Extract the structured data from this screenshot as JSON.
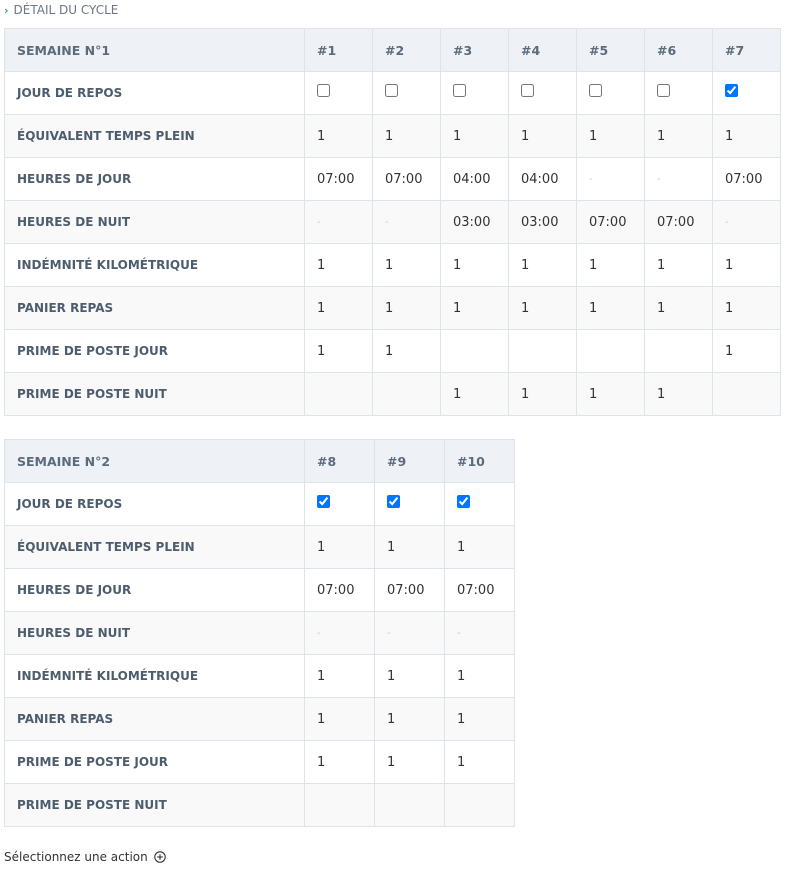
{
  "header": {
    "title": "DÉTAIL DU CYCLE"
  },
  "tables": [
    {
      "title": "SEMAINE N°1",
      "columns": [
        "#1",
        "#2",
        "#3",
        "#4",
        "#5",
        "#6",
        "#7"
      ],
      "rows": [
        {
          "label": "JOUR DE REPOS",
          "checked": [
            false,
            false,
            false,
            false,
            false,
            false,
            true
          ]
        },
        {
          "label": "ÉQUIVALENT TEMPS PLEIN",
          "cells": [
            "1",
            "1",
            "1",
            "1",
            "1",
            "1",
            "1"
          ]
        },
        {
          "label": "HEURES DE JOUR",
          "cells": [
            "07:00",
            "07:00",
            "04:00",
            "04:00",
            "-",
            "-",
            "07:00"
          ]
        },
        {
          "label": "HEURES DE NUIT",
          "cells": [
            "-",
            "-",
            "03:00",
            "03:00",
            "07:00",
            "07:00",
            "-"
          ]
        },
        {
          "label": "INDÉMNITÉ KILOMÉTRIQUE",
          "cells": [
            "1",
            "1",
            "1",
            "1",
            "1",
            "1",
            "1"
          ]
        },
        {
          "label": "PANIER REPAS",
          "cells": [
            "1",
            "1",
            "1",
            "1",
            "1",
            "1",
            "1"
          ]
        },
        {
          "label": "PRIME DE POSTE JOUR",
          "cells": [
            "1",
            "1",
            null,
            null,
            null,
            null,
            "1"
          ]
        },
        {
          "label": "PRIME DE POSTE NUIT",
          "cells": [
            null,
            null,
            "1",
            "1",
            "1",
            "1",
            null
          ]
        }
      ]
    },
    {
      "title": "SEMAINE N°2",
      "columns": [
        "#8",
        "#9",
        "#10"
      ],
      "rows": [
        {
          "label": "JOUR DE REPOS",
          "checked": [
            true,
            true,
            true
          ]
        },
        {
          "label": "ÉQUIVALENT TEMPS PLEIN",
          "cells": [
            "1",
            "1",
            "1"
          ]
        },
        {
          "label": "HEURES DE JOUR",
          "cells": [
            "07:00",
            "07:00",
            "07:00"
          ]
        },
        {
          "label": "HEURES DE NUIT",
          "cells": [
            "-",
            "-",
            "-"
          ]
        },
        {
          "label": "INDÉMNITÉ KILOMÉTRIQUE",
          "cells": [
            "1",
            "1",
            "1"
          ]
        },
        {
          "label": "PANIER REPAS",
          "cells": [
            "1",
            "1",
            "1"
          ]
        },
        {
          "label": "PRIME DE POSTE JOUR",
          "cells": [
            "1",
            "1",
            "1"
          ]
        },
        {
          "label": "PRIME DE POSTE NUIT",
          "cells": [
            null,
            null,
            null
          ]
        }
      ]
    }
  ],
  "footer": {
    "action": "Sélectionnez une action"
  }
}
